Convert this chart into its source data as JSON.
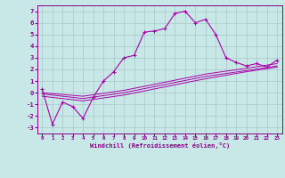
{
  "xlabel": "Windchill (Refroidissement éolien,°C)",
  "bg_color": "#c8e8e8",
  "grid_color": "#a8c8c8",
  "line_color": "#aa00aa",
  "tick_color": "#880088",
  "xlim": [
    -0.5,
    23.5
  ],
  "ylim": [
    -3.5,
    7.5
  ],
  "yticks": [
    -3,
    -2,
    -1,
    0,
    1,
    2,
    3,
    4,
    5,
    6,
    7
  ],
  "xticks": [
    0,
    1,
    2,
    3,
    4,
    5,
    6,
    7,
    8,
    9,
    10,
    11,
    12,
    13,
    14,
    15,
    16,
    17,
    18,
    19,
    20,
    21,
    22,
    23
  ],
  "series1_x": [
    0,
    1,
    2,
    3,
    4,
    5,
    6,
    7,
    8,
    9,
    10,
    11,
    12,
    13,
    14,
    15,
    16,
    17,
    18,
    19,
    20,
    21,
    22,
    23
  ],
  "series1_y": [
    0.3,
    -2.7,
    -0.8,
    -1.2,
    -2.2,
    -0.4,
    1.0,
    1.8,
    3.0,
    3.2,
    5.2,
    5.3,
    5.5,
    6.8,
    7.0,
    6.0,
    6.3,
    5.0,
    3.0,
    2.6,
    2.3,
    2.5,
    2.2,
    2.8
  ],
  "series2_x": [
    0,
    4,
    8,
    12,
    16,
    20,
    23
  ],
  "series2_y": [
    0.0,
    -0.3,
    0.2,
    0.9,
    1.6,
    2.1,
    2.5
  ],
  "series3_x": [
    0,
    4,
    8,
    12,
    16,
    20,
    23
  ],
  "series3_y": [
    -0.1,
    -0.5,
    0.0,
    0.7,
    1.4,
    1.9,
    2.3
  ],
  "series4_x": [
    0,
    4,
    8,
    12,
    16,
    20,
    23
  ],
  "series4_y": [
    -0.3,
    -0.7,
    -0.2,
    0.5,
    1.2,
    1.8,
    2.2
  ]
}
